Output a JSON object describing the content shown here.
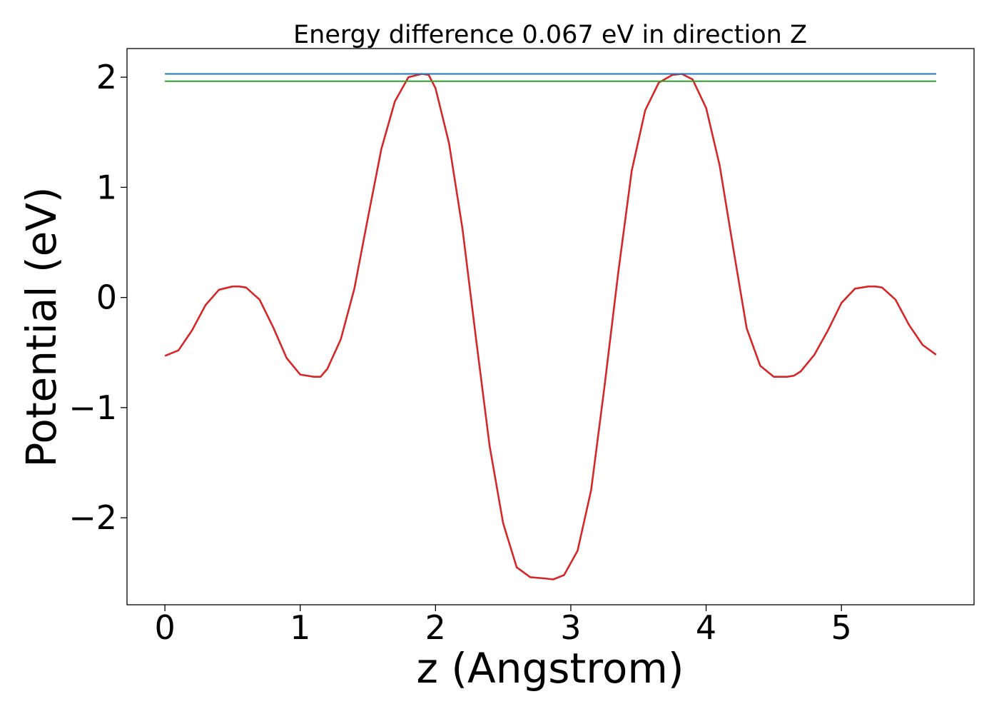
{
  "chart_data": {
    "type": "line",
    "title": "Energy difference 0.067 eV in direction Z",
    "xlabel": "z (Angstrom)",
    "ylabel": "Potential (eV)",
    "xlim": [
      -0.28,
      5.98
    ],
    "ylim": [
      -2.79,
      2.26
    ],
    "xticks": [
      0,
      1,
      2,
      3,
      4,
      5
    ],
    "xtick_labels": [
      "0",
      "1",
      "2",
      "3",
      "4",
      "5"
    ],
    "yticks": [
      -2,
      -1,
      0,
      1,
      2
    ],
    "ytick_labels": [
      "−2",
      "−1",
      "0",
      "1",
      "2"
    ],
    "grid": false,
    "legend": "none",
    "series": [
      {
        "color": "#d62728",
        "x": [
          0.0,
          0.1,
          0.2,
          0.3,
          0.4,
          0.5,
          0.55,
          0.6,
          0.7,
          0.8,
          0.9,
          1.0,
          1.1,
          1.15,
          1.2,
          1.3,
          1.4,
          1.5,
          1.6,
          1.7,
          1.8,
          1.9,
          1.95,
          2.0,
          2.1,
          2.2,
          2.3,
          2.4,
          2.5,
          2.6,
          2.7,
          2.8,
          2.87,
          2.95,
          3.05,
          3.15,
          3.25,
          3.35,
          3.45,
          3.55,
          3.65,
          3.75,
          3.82,
          3.9,
          4.0,
          4.1,
          4.2,
          4.3,
          4.4,
          4.5,
          4.6,
          4.65,
          4.7,
          4.8,
          4.9,
          5.0,
          5.1,
          5.2,
          5.25,
          5.3,
          5.4,
          5.5,
          5.6,
          5.7
        ],
        "y": [
          -0.53,
          -0.48,
          -0.3,
          -0.07,
          0.07,
          0.1,
          0.1,
          0.09,
          -0.02,
          -0.27,
          -0.55,
          -0.7,
          -0.72,
          -0.72,
          -0.65,
          -0.38,
          0.08,
          0.72,
          1.35,
          1.78,
          2.0,
          2.03,
          2.02,
          1.9,
          1.4,
          0.62,
          -0.38,
          -1.35,
          -2.05,
          -2.45,
          -2.54,
          -2.55,
          -2.56,
          -2.52,
          -2.3,
          -1.75,
          -0.8,
          0.22,
          1.15,
          1.7,
          1.95,
          2.02,
          2.03,
          1.98,
          1.72,
          1.2,
          0.45,
          -0.28,
          -0.62,
          -0.72,
          -0.72,
          -0.71,
          -0.67,
          -0.52,
          -0.3,
          -0.05,
          0.08,
          0.1,
          0.1,
          0.09,
          -0.02,
          -0.25,
          -0.43,
          -0.52
        ]
      },
      {
        "color": "#1f77b4",
        "x": [
          0.0,
          5.7
        ],
        "y": [
          2.03,
          2.03
        ]
      },
      {
        "color": "#2ca02c",
        "x": [
          0.0,
          5.7
        ],
        "y": [
          1.963,
          1.963
        ]
      }
    ]
  }
}
